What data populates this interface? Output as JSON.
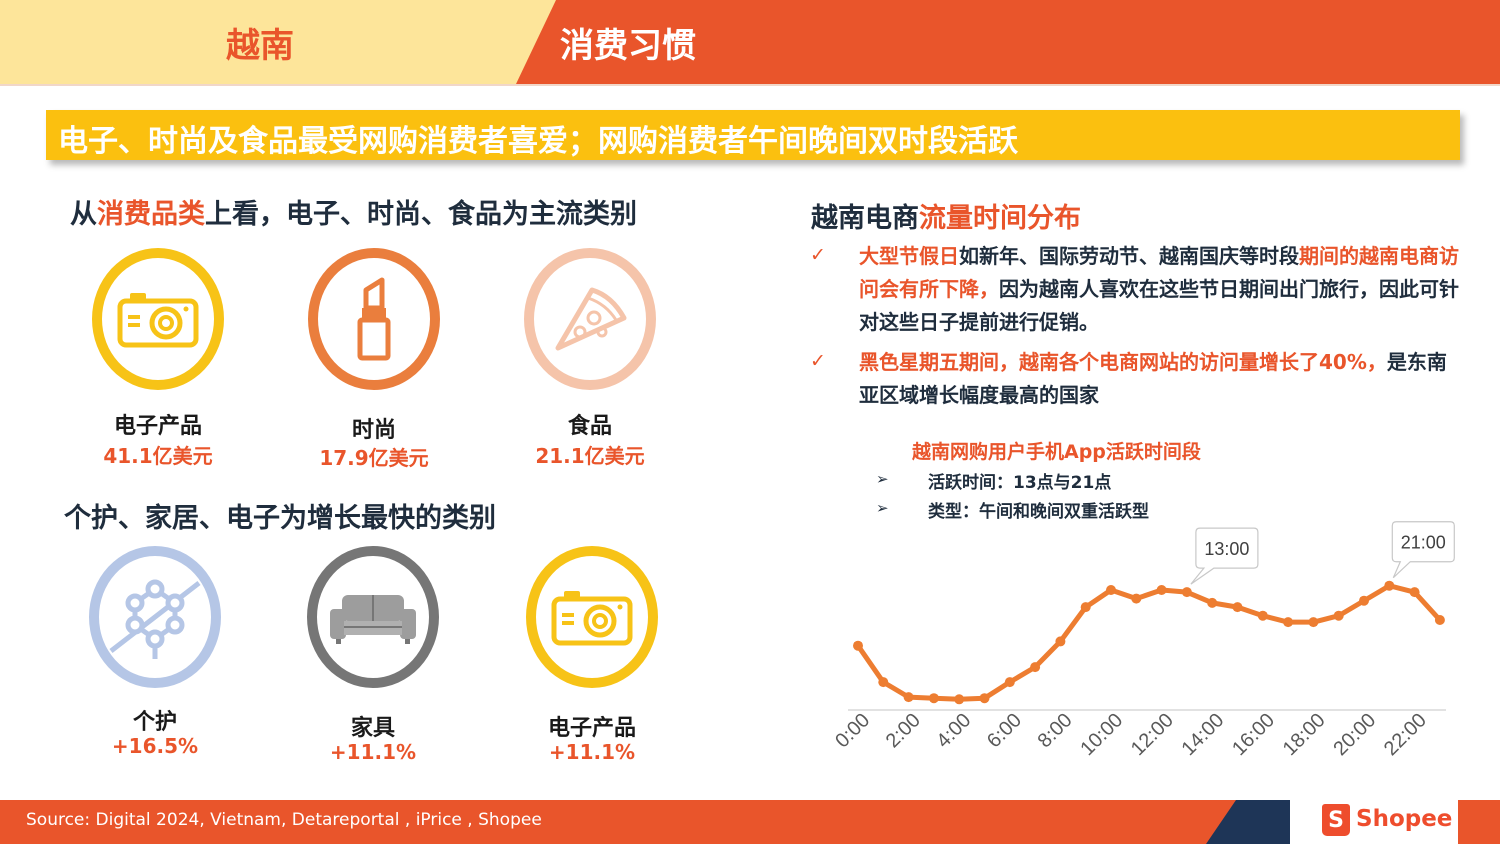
{
  "header": {
    "country": "越南",
    "topic": "消费习惯"
  },
  "banner": "电子、时尚及食品最受网购消费者喜爱；网购消费者午间晚间双时段活跃",
  "section1": {
    "title_prefix": "从",
    "title_highlight": "消费品类",
    "title_suffix": "上看，电子、时尚、食品为主流类别",
    "items": [
      {
        "name": "电子产品",
        "value": "41.1亿美元",
        "icon": "camera-icon",
        "color": "#f7c317"
      },
      {
        "name": "时尚",
        "value": "17.9亿美元",
        "icon": "lipstick-icon",
        "color": "#ea7e3d"
      },
      {
        "name": "食品",
        "value": "21.1亿美元",
        "icon": "pizza-icon",
        "color": "#f5c4aa"
      }
    ]
  },
  "section2": {
    "title": "个护、家居、电子为增长最快的类别",
    "items": [
      {
        "name": "个护",
        "value": "+16.5%",
        "icon": "molecule-icon",
        "color": "#b5c6e6"
      },
      {
        "name": "家具",
        "value": "+11.1%",
        "icon": "sofa-icon",
        "color": "#767676"
      },
      {
        "name": "电子产品",
        "value": "+11.1%",
        "icon": "camera-icon",
        "color": "#f7c317"
      }
    ]
  },
  "right": {
    "title_prefix": "越南电商",
    "title_highlight": "流量时间分布",
    "bullet_mark": "✓",
    "bullet1": {
      "hl1": "大型节假日",
      "text1": "如新年、国际劳动节、越南国庆等时段",
      "hl2": "期间的越南电商访问会有所下降，",
      "text2": "因为越南人喜欢在这些节日期间出门旅行，因此可针对这些日子提前进行促销。"
    },
    "bullet2": {
      "hl1": "黑色星期五期间，越南各个电商网站的访问量增长了40%，",
      "text1": "是东南亚区域增长幅度最高的国家"
    },
    "sub_title": "越南网购用户手机App活跃时间段",
    "arrow_mark": "➢",
    "sub_items": [
      "活跃时间：13点与21点",
      "类型：午间和晚间双重活跃型"
    ]
  },
  "chart_data": {
    "type": "line",
    "x": [
      "0:00",
      "1:00",
      "2:00",
      "3:00",
      "4:00",
      "5:00",
      "6:00",
      "7:00",
      "8:00",
      "9:00",
      "10:00",
      "11:00",
      "12:00",
      "13:00",
      "14:00",
      "15:00",
      "16:00",
      "17:00",
      "18:00",
      "19:00",
      "20:00",
      "21:00",
      "22:00",
      "23:00"
    ],
    "tick_labels": [
      "0:00",
      "2:00",
      "4:00",
      "6:00",
      "8:00",
      "10:00",
      "12:00",
      "14:00",
      "16:00",
      "18:00",
      "20:00",
      "22:00"
    ],
    "values": [
      30,
      13,
      6,
      5.5,
      5,
      5.5,
      13,
      20,
      32,
      48,
      56,
      52,
      56,
      55,
      50,
      48,
      44,
      41,
      41,
      44,
      51,
      58,
      55,
      42
    ],
    "callouts": [
      "13:00",
      "21:00"
    ],
    "color": "#ed7d31",
    "ylim": [
      0,
      70
    ],
    "grid": false
  },
  "footer": {
    "source": "Source: Digital 2024, Vietnam, Detareportal , iPrice , Shopee",
    "brand": "Shopee",
    "brand_letter": "S"
  }
}
